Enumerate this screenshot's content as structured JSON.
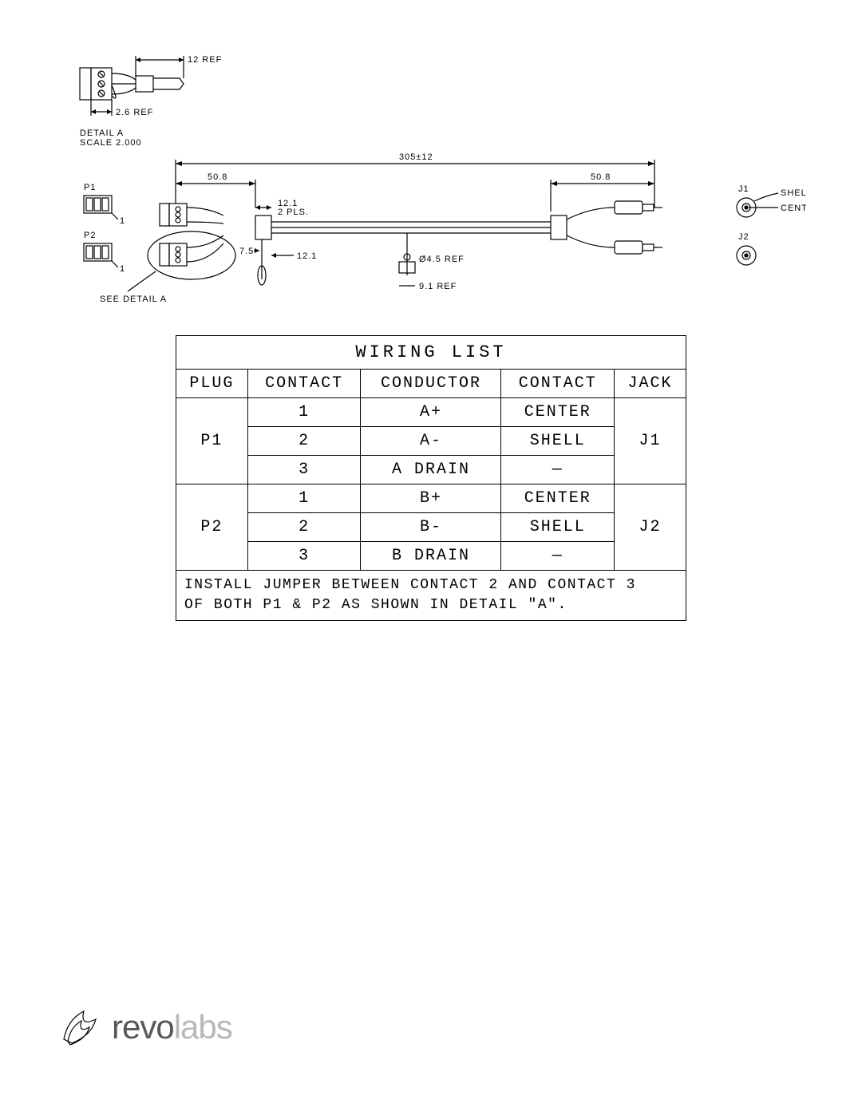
{
  "diagram": {
    "detail_label_1": "DETAIL A",
    "detail_label_2": "SCALE 2.000",
    "dim_12ref": "12 REF",
    "dim_26ref": "2.6 REF",
    "dim_overall": "305±12",
    "dim_508_left": "50.8",
    "dim_508_right": "50.8",
    "dim_121": "12.1",
    "dim_121_pls": "2 PLS.",
    "dim_75": "7.5",
    "dim_121b": "12.1",
    "dim_045ref": "Ø4.5 REF",
    "dim_91ref": "9.1 REF",
    "p1": "P1",
    "p2": "P2",
    "p1_pin": "1",
    "p2_pin": "1",
    "j1": "J1",
    "j2": "J2",
    "j1_shell": "SHELL",
    "j1_center": "CENTER",
    "see_detail": "SEE DETAIL A"
  },
  "table": {
    "title": "WIRING LIST",
    "headers": [
      "PLUG",
      "CONTACT",
      "CONDUCTOR",
      "CONTACT",
      "JACK"
    ],
    "rows": [
      {
        "plug": "P1",
        "contact1": "1",
        "conductor": "A+",
        "contact2": "CENTER",
        "jack": "J1",
        "rowspan": 3
      },
      {
        "contact1": "2",
        "conductor": "A-",
        "contact2": "SHELL"
      },
      {
        "contact1": "3",
        "conductor": "A DRAIN",
        "contact2": "—"
      },
      {
        "plug": "P2",
        "contact1": "1",
        "conductor": "B+",
        "contact2": "CENTER",
        "jack": "J2",
        "rowspan": 3
      },
      {
        "contact1": "2",
        "conductor": "B-",
        "contact2": "SHELL"
      },
      {
        "contact1": "3",
        "conductor": "B DRAIN",
        "contact2": "—"
      }
    ],
    "footer": "INSTALL JUMPER BETWEEN CONTACT 2 AND CONTACT 3\nOF BOTH P1 & P2 AS SHOWN IN DETAIL \"A\"."
  },
  "logo": {
    "part1": "revo",
    "part2": "labs"
  },
  "colors": {
    "border": "#000000",
    "bg": "#ffffff",
    "logo_accent": "#7fd4d4",
    "logo_grey": "#b8b8b8",
    "logo_dark": "#575757"
  }
}
